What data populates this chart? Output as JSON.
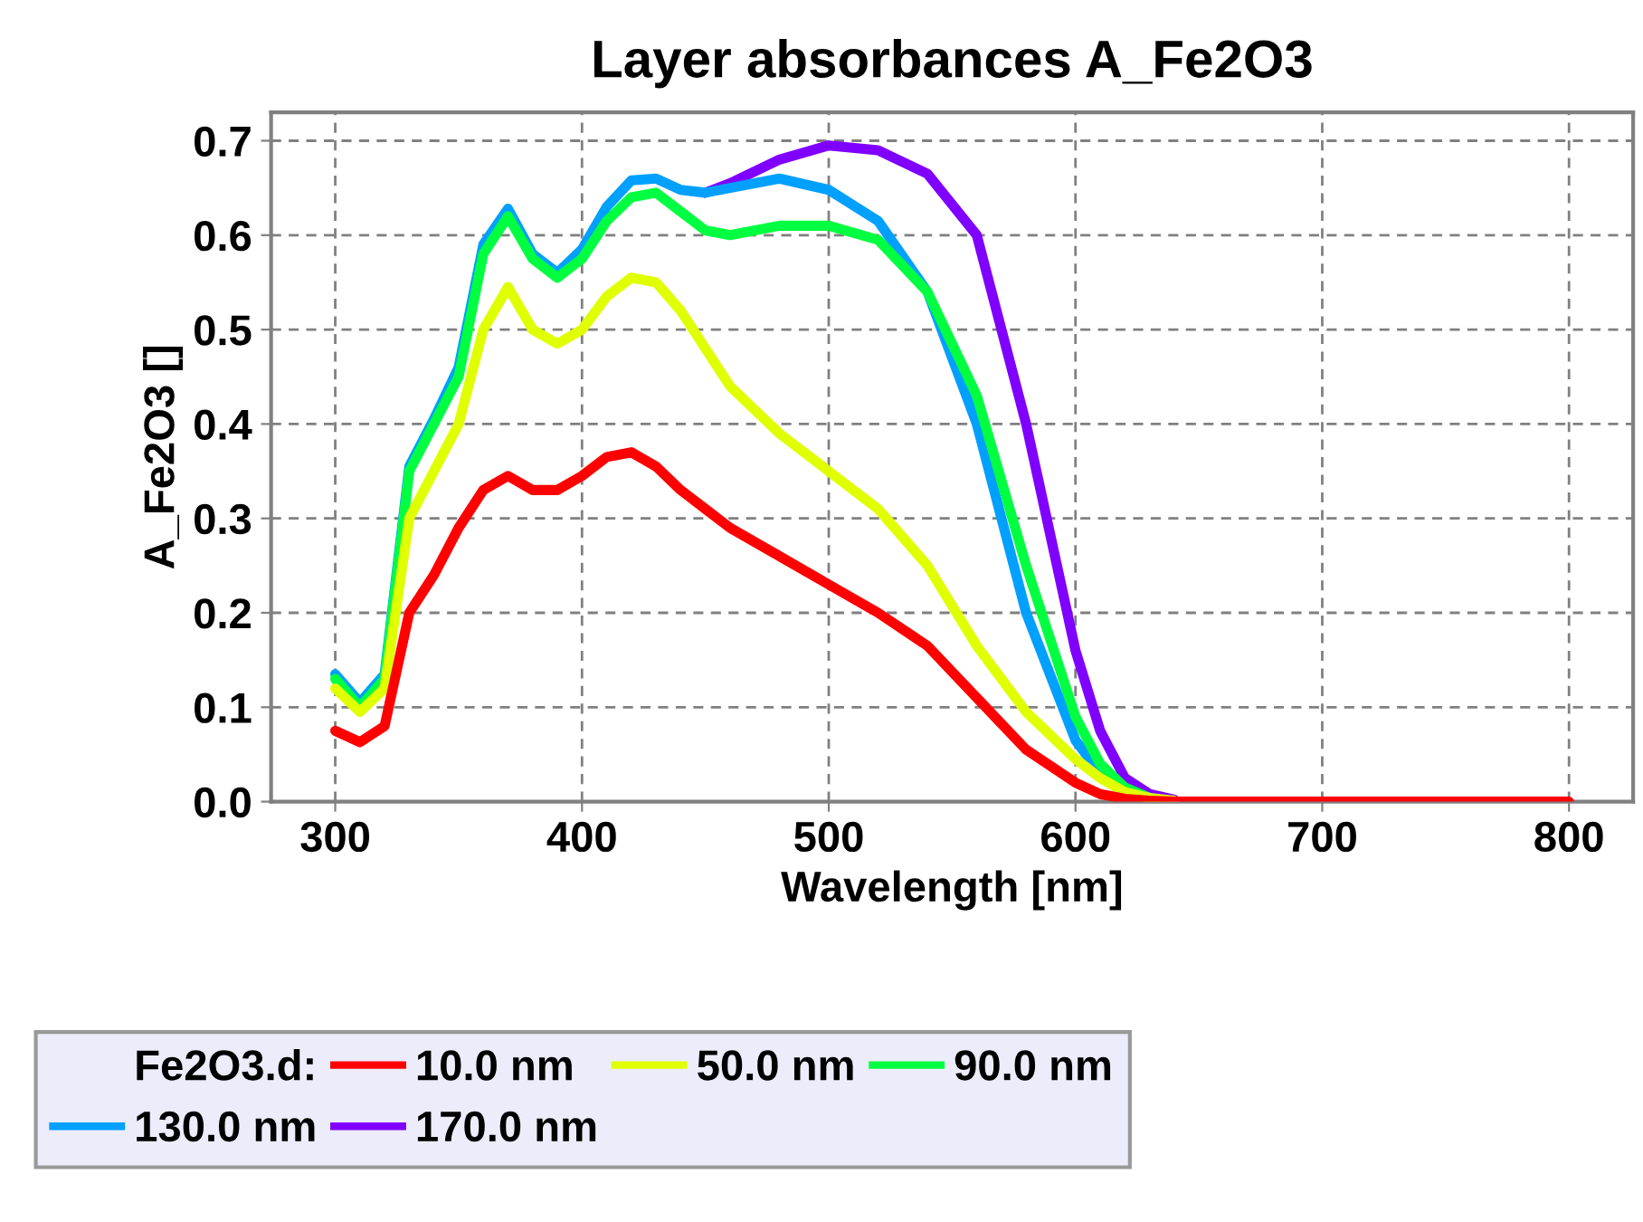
{
  "chart_data": {
    "type": "line",
    "title": "Layer absorbances A_Fe2O3",
    "xlabel": "Wavelength [nm]",
    "ylabel": "A_Fe2O3 []",
    "legend_title": "Fe2O3.d:",
    "x": [
      300,
      310,
      320,
      330,
      340,
      350,
      360,
      370,
      380,
      390,
      400,
      410,
      420,
      430,
      440,
      450,
      460,
      480,
      500,
      520,
      540,
      560,
      580,
      600,
      610,
      620,
      630,
      640,
      700,
      800
    ],
    "series": [
      {
        "name": "10.0 nm",
        "color": "#ff0000",
        "values": [
          0.075,
          0.063,
          0.08,
          0.2,
          0.24,
          0.29,
          0.33,
          0.345,
          0.33,
          0.33,
          0.345,
          0.365,
          0.37,
          0.355,
          0.33,
          0.31,
          0.29,
          0.26,
          0.23,
          0.2,
          0.165,
          0.11,
          0.055,
          0.02,
          0.008,
          0.003,
          0.001,
          0.0,
          0.0,
          0.0
        ]
      },
      {
        "name": "50.0 nm",
        "color": "#e0ff00",
        "values": [
          0.12,
          0.095,
          0.12,
          0.3,
          0.35,
          0.4,
          0.5,
          0.545,
          0.5,
          0.485,
          0.5,
          0.535,
          0.555,
          0.55,
          0.52,
          0.48,
          0.44,
          0.39,
          0.35,
          0.31,
          0.25,
          0.165,
          0.095,
          0.045,
          0.025,
          0.01,
          0.004,
          0.001,
          null,
          null
        ]
      },
      {
        "name": "90.0 nm",
        "color": "#00ff40",
        "values": [
          0.13,
          0.1,
          0.13,
          0.35,
          0.4,
          0.45,
          0.58,
          0.62,
          0.575,
          0.555,
          0.575,
          0.615,
          0.64,
          0.645,
          0.625,
          0.605,
          0.6,
          0.61,
          0.61,
          0.595,
          0.54,
          0.43,
          0.25,
          0.09,
          0.04,
          0.015,
          0.004,
          null,
          null,
          null
        ]
      },
      {
        "name": "130.0 nm",
        "color": "#00a0ff",
        "values": [
          0.135,
          0.105,
          0.135,
          0.355,
          0.405,
          0.46,
          0.59,
          0.628,
          0.58,
          0.56,
          0.585,
          0.63,
          0.658,
          0.66,
          0.648,
          0.645,
          0.65,
          0.66,
          0.648,
          0.615,
          0.54,
          0.4,
          0.2,
          0.065,
          0.03,
          0.012,
          null,
          null,
          null,
          null
        ]
      },
      {
        "name": "170.0 nm",
        "color": "#8000ff",
        "values": [
          null,
          null,
          null,
          null,
          null,
          null,
          null,
          null,
          null,
          null,
          null,
          null,
          null,
          null,
          null,
          0.645,
          0.655,
          0.68,
          0.695,
          0.69,
          0.665,
          0.6,
          0.4,
          0.16,
          0.075,
          0.025,
          0.008,
          0.002,
          null,
          null
        ]
      }
    ],
    "xlim": [
      274,
      826
    ],
    "ylim": [
      0,
      0.73
    ],
    "xticks": [
      300,
      400,
      500,
      600,
      700,
      800
    ],
    "yticks": [
      {
        "value": 0,
        "label": "0.0"
      },
      0.1,
      0.2,
      0.3,
      0.4,
      0.5,
      0.6,
      0.7
    ],
    "grid": true,
    "legend": "bottom",
    "line_style": "solid",
    "marker": "none"
  }
}
